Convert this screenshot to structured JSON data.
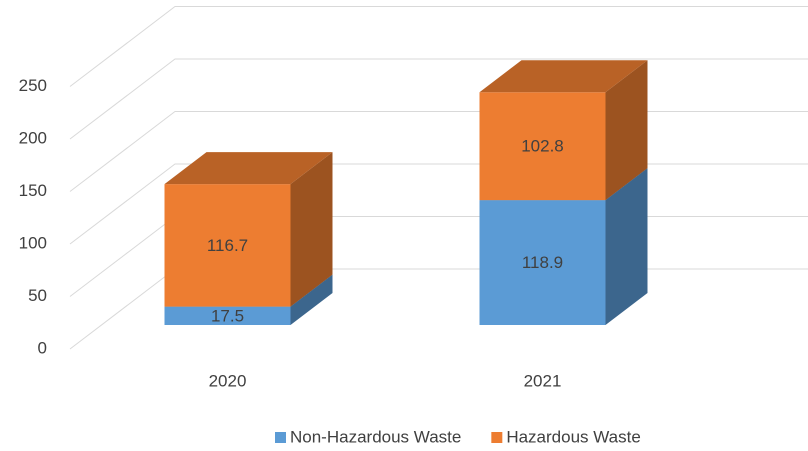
{
  "chart_data": {
    "type": "bar3d_stacked",
    "categories": [
      "2020",
      "2021"
    ],
    "series": [
      {
        "name": "Non-Hazardous Waste",
        "color": "#5b9bd5",
        "values": [
          17.5,
          118.9
        ]
      },
      {
        "name": "Hazardous Waste",
        "color": "#ed7d31",
        "values": [
          116.7,
          102.8
        ]
      }
    ],
    "ylim": [
      0,
      250
    ],
    "yticks": [
      0,
      50,
      100,
      150,
      200,
      250
    ],
    "grid": true,
    "legend": "bottom"
  }
}
